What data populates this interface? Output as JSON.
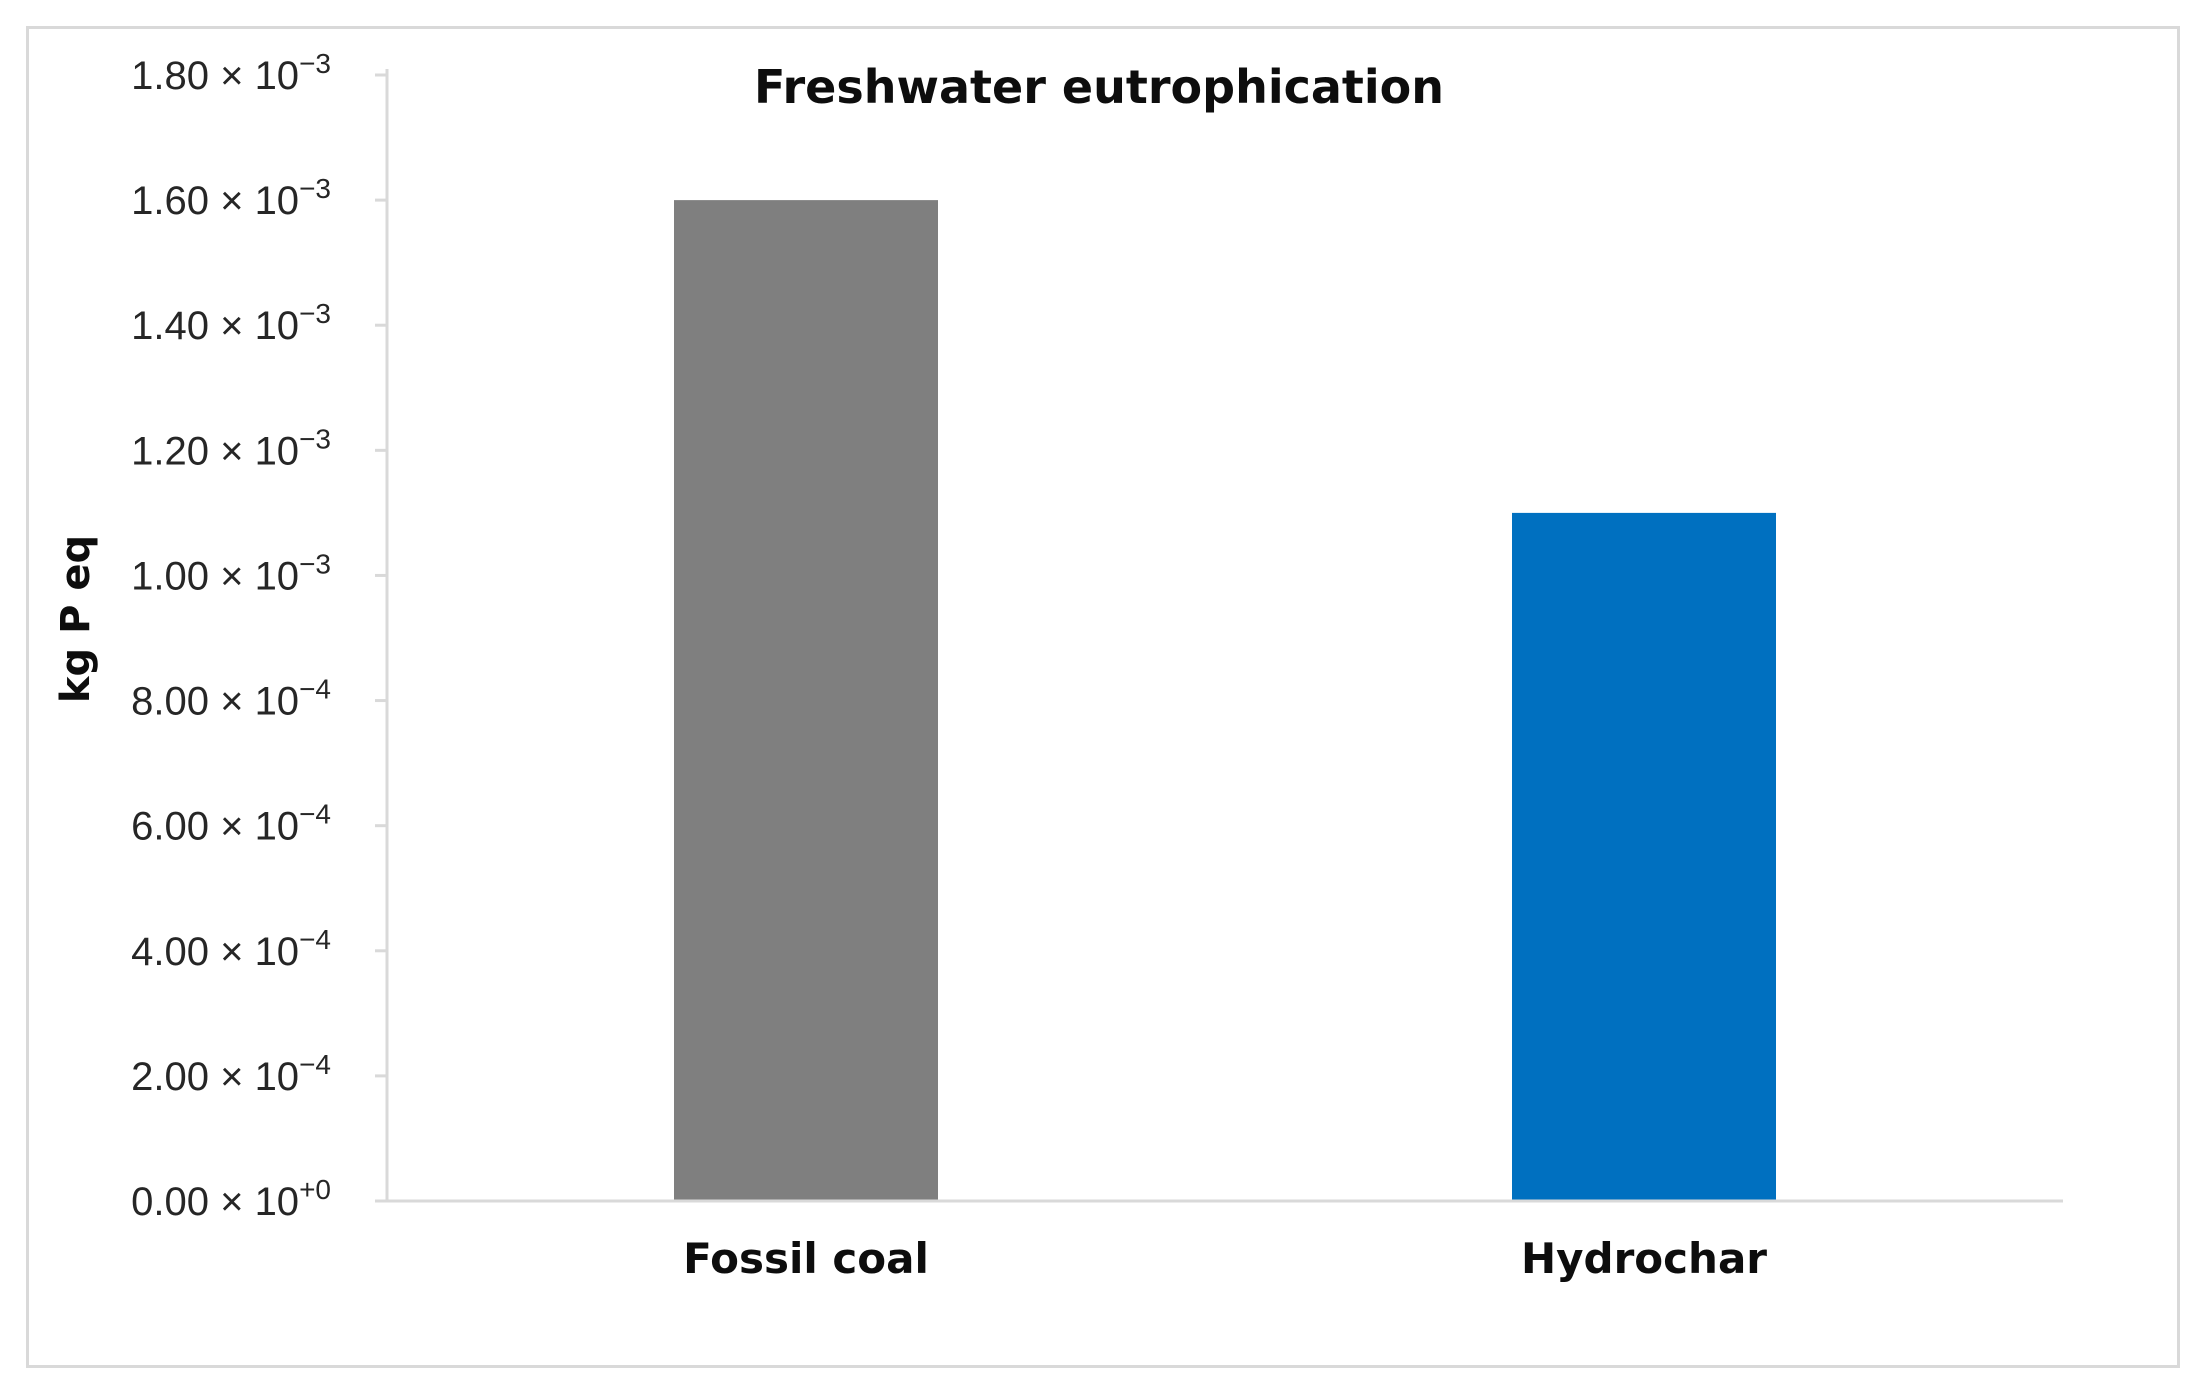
{
  "chart_data": {
    "type": "bar",
    "title": "Freshwater eutrophication",
    "xlabel": "",
    "ylabel": "kg P eq",
    "categories": [
      "Fossil coal",
      "Hydrochar"
    ],
    "values": [
      0.0016,
      0.0011
    ],
    "bar_colors": [
      "#7f7f7f",
      "#0070c0"
    ],
    "ylim": [
      0,
      0.0018
    ],
    "y_ticks": [
      {
        "value": 0.0018,
        "mantissa": "1.80 × 10",
        "exponent": "−3"
      },
      {
        "value": 0.0016,
        "mantissa": "1.60 × 10",
        "exponent": "−3"
      },
      {
        "value": 0.0014,
        "mantissa": "1.40 × 10",
        "exponent": "−3"
      },
      {
        "value": 0.0012,
        "mantissa": "1.20 × 10",
        "exponent": "−3"
      },
      {
        "value": 0.001,
        "mantissa": "1.00 × 10",
        "exponent": "−3"
      },
      {
        "value": 0.0008,
        "mantissa": "8.00 × 10",
        "exponent": "−4"
      },
      {
        "value": 0.0006,
        "mantissa": "6.00 × 10",
        "exponent": "−4"
      },
      {
        "value": 0.0004,
        "mantissa": "4.00 × 10",
        "exponent": "−4"
      },
      {
        "value": 0.0002,
        "mantissa": "2.00 × 10",
        "exponent": "−4"
      },
      {
        "value": 0.0,
        "mantissa": "0.00 × 10",
        "exponent": "+0"
      }
    ],
    "grid": false,
    "legend": "none"
  },
  "colors": {
    "axis": "#d9d9d9",
    "frame_border": "#d9d9d9"
  }
}
